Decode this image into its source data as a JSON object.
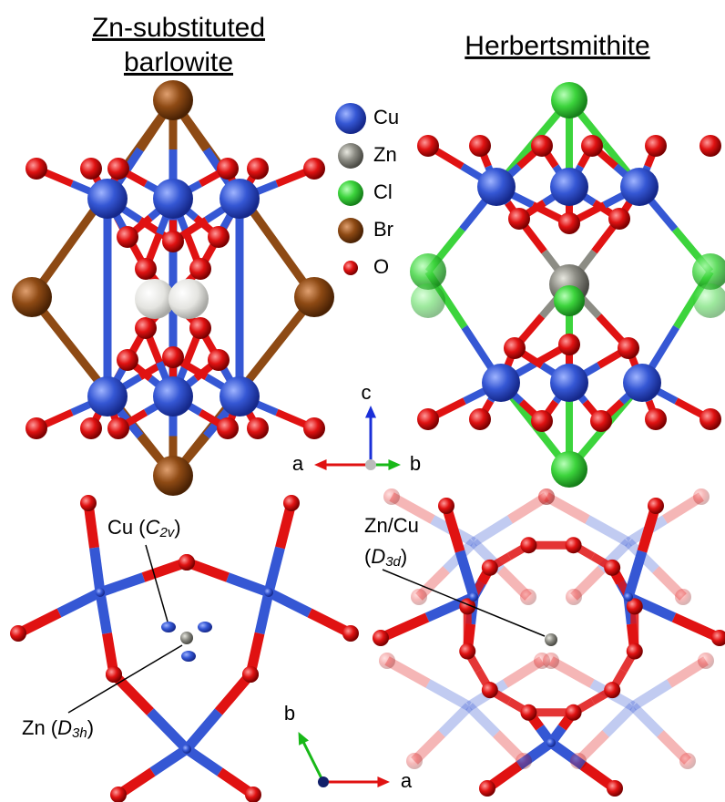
{
  "titles": {
    "left": [
      "Zn-substituted",
      "barlowite"
    ],
    "right": "Herbertsmithite"
  },
  "legend": [
    {
      "label": "Cu",
      "color": "#3557d4"
    },
    {
      "label": "Zn",
      "color": "#8c8c84"
    },
    {
      "label": "Cl",
      "color": "#3cd43c"
    },
    {
      "label": "Br",
      "color": "#8e4a14"
    },
    {
      "label": "O",
      "color": "#e01212"
    }
  ],
  "axes_top": {
    "c": "c",
    "a": "a",
    "b": "b"
  },
  "axes_bottom": {
    "b": "b",
    "a": "a"
  },
  "annotations": {
    "cu": [
      "Cu (",
      "C",
      "2v",
      ")"
    ],
    "zn": [
      "Zn (",
      "D",
      "3h",
      ")"
    ],
    "zncu": [
      "Zn/Cu",
      "(",
      "D",
      "3d",
      ")"
    ]
  }
}
